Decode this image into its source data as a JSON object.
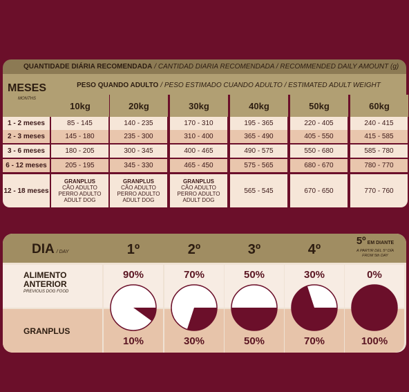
{
  "table1": {
    "title_bold": "QUANTIDADE DIÁRIA RECOMENDADA",
    "title_rest": "/ CANTIDAD DIARIA RECOMENDADA / RECOMMENDED DAILY AMOUNT (g)",
    "months_label": "MESES",
    "months_sub": "MONTHS",
    "weight_bold": "PESO QUANDO ADULTO",
    "weight_rest": "/ PESO ESTIMADO CUANDO ADULTO / ESTIMATED ADULT WEIGHT",
    "weights": [
      "10kg",
      "20kg",
      "30kg",
      "40kg",
      "50kg",
      "60kg"
    ],
    "rows": [
      {
        "month": "1 - 2 meses",
        "values": [
          "85 - 145",
          "140 - 235",
          "170 - 310",
          "195 - 365",
          "220 - 405",
          "240 - 415"
        ]
      },
      {
        "month": "2 - 3 meses",
        "values": [
          "145 - 180",
          "235 - 300",
          "310 - 400",
          "365 - 490",
          "405 - 550",
          "415 - 585"
        ]
      },
      {
        "month": "3 - 6 meses",
        "values": [
          "180 - 205",
          "300 - 345",
          "400 - 465",
          "490 - 575",
          "550 - 680",
          "585 - 780"
        ]
      },
      {
        "month": "6 - 12 meses",
        "values": [
          "205 - 195",
          "345 - 330",
          "465 - 450",
          "575 - 565",
          "680 - 670",
          "780 - 770"
        ]
      }
    ],
    "last_row": {
      "month": "12 - 18 meses",
      "adult_line1": "GRANPLUS",
      "adult_line2": "CÃO ADULTO",
      "adult_line3": "PERRO ADULTO",
      "adult_line4": "ADULT DOG",
      "values": [
        "565 - 545",
        "670 - 650",
        "770 - 760"
      ]
    }
  },
  "table2": {
    "dia_label": "DIA",
    "dia_sub": "/ DAY",
    "days": [
      "1º",
      "2º",
      "3º",
      "4º"
    ],
    "day5": "5º",
    "day5_suffix": "EM DIANTE",
    "day5_sub1": "A PARTIR DEL 5º DÍA",
    "day5_sub2": "FROM 5th DAY",
    "prev_label1": "ALIMENTO",
    "prev_label2": "ANTERIOR",
    "prev_sub": "PREVIOUS DOG FOOD",
    "granplus_label": "GRANPLUS",
    "previous_pct": [
      "90%",
      "70%",
      "50%",
      "30%",
      "0%"
    ],
    "granplus_pct": [
      "10%",
      "30%",
      "50%",
      "70%",
      "100%"
    ],
    "granplus_fraction": [
      0.1,
      0.3,
      0.5,
      0.7,
      1.0
    ],
    "colors": {
      "pie_fill": "#6b0f2a",
      "pie_empty": "#ffffff"
    }
  }
}
